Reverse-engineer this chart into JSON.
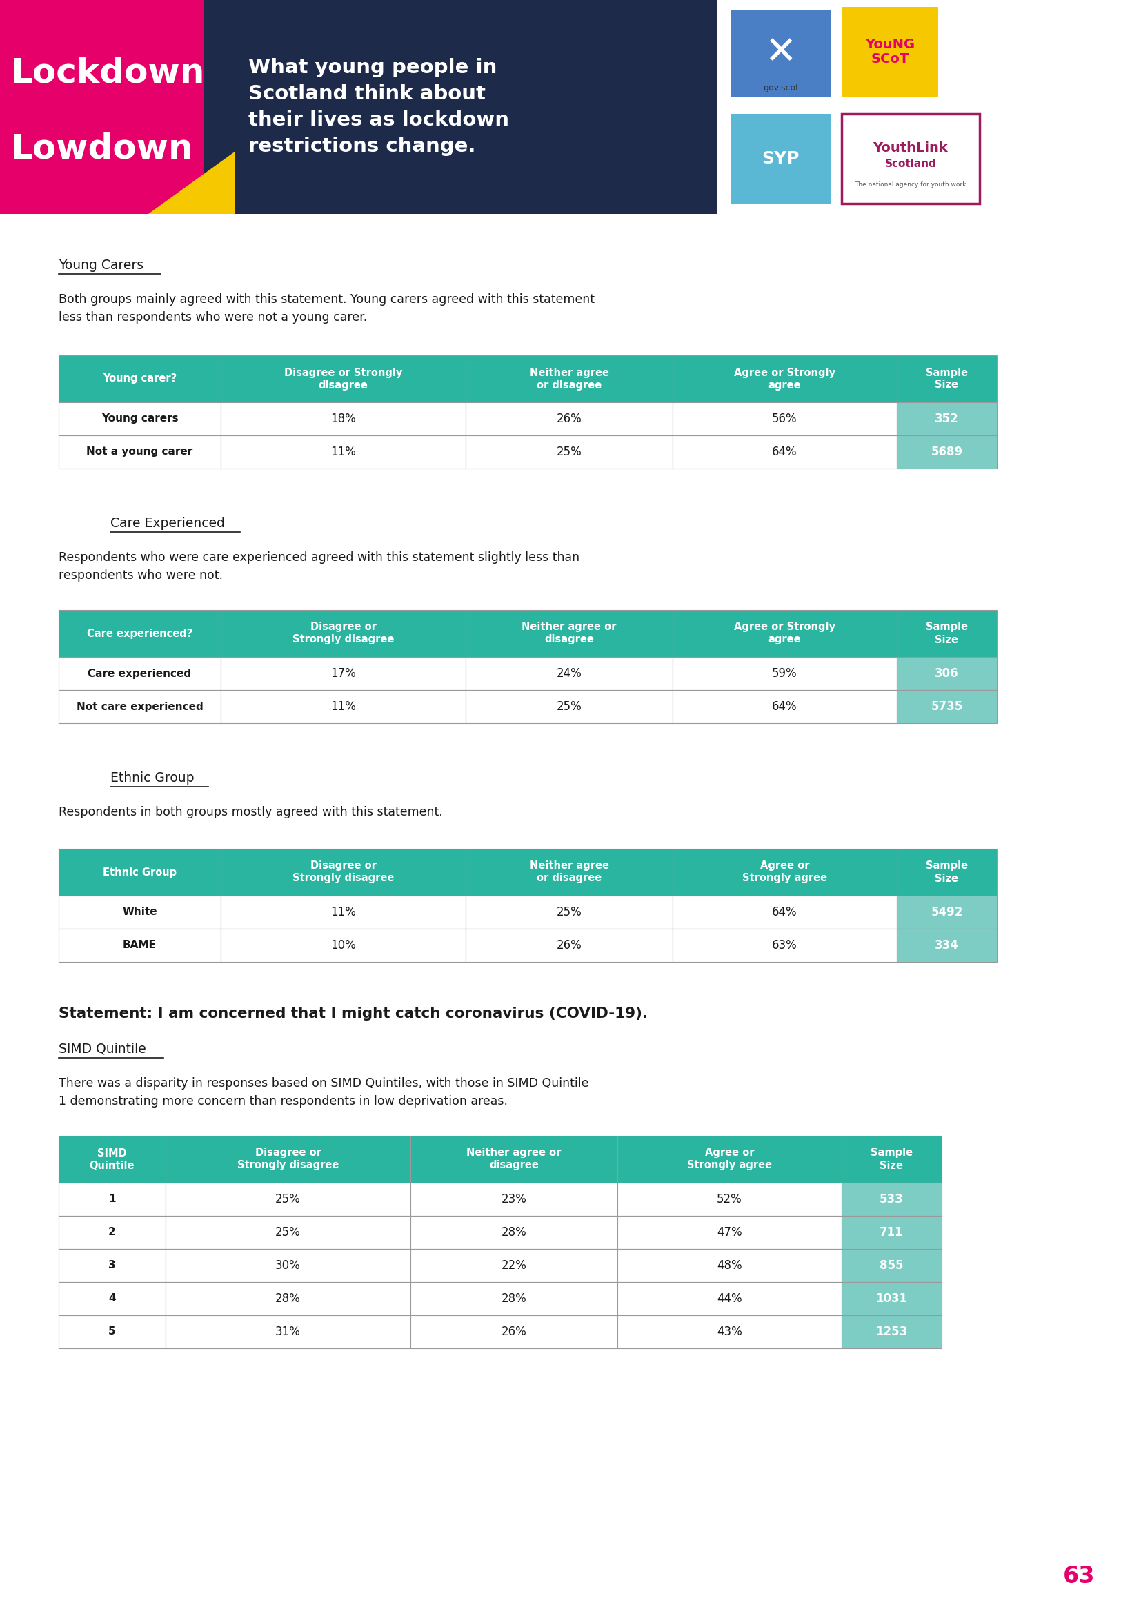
{
  "header_bg": "#1e2a4a",
  "teal_color": "#2ab5a0",
  "light_teal": "#7ecdc5",
  "pink_color": "#e5006a",
  "yellow_color": "#f5c800",
  "white": "#ffffff",
  "black": "#000000",
  "dark_text": "#1a1a1a",
  "page_bg": "#ffffff",
  "page_number_color": "#e5006a",
  "section_title1": "Young Carers",
  "section_desc1": "Both groups mainly agreed with this statement. Young carers agreed with this statement\nless than respondents who were not a young carer.",
  "table1_header": [
    "Young carer?",
    "Disagree or Strongly\ndisagree",
    "Neither agree\nor disagree",
    "Agree or Strongly\nagree",
    "Sample\nSize"
  ],
  "table1_rows": [
    [
      "Young carers",
      "18%",
      "26%",
      "56%",
      "352"
    ],
    [
      "Not a young carer",
      "11%",
      "25%",
      "64%",
      "5689"
    ]
  ],
  "section_title2": "Care Experienced",
  "section_desc2": "Respondents who were care experienced agreed with this statement slightly less than\nrespondents who were not.",
  "table2_header": [
    "Care experienced?",
    "Disagree or\nStrongly disagree",
    "Neither agree or\ndisagree",
    "Agree or Strongly\nagree",
    "Sample\nSize"
  ],
  "table2_rows": [
    [
      "Care experienced",
      "17%",
      "24%",
      "59%",
      "306"
    ],
    [
      "Not care experienced",
      "11%",
      "25%",
      "64%",
      "5735"
    ]
  ],
  "section_title3": "Ethnic Group",
  "section_desc3": "Respondents in both groups mostly agreed with this statement.",
  "table3_header": [
    "Ethnic Group",
    "Disagree or\nStrongly disagree",
    "Neither agree\nor disagree",
    "Agree or\nStrongly agree",
    "Sample\nSize"
  ],
  "table3_rows": [
    [
      "White",
      "11%",
      "25%",
      "64%",
      "5492"
    ],
    [
      "BAME",
      "10%",
      "26%",
      "63%",
      "334"
    ]
  ],
  "bold_statement": "Statement: I am concerned that I might catch coronavirus (COVID-19).",
  "section_title4": "SIMD Quintile",
  "section_desc4": "There was a disparity in responses based on SIMD Quintiles, with those in SIMD Quintile\n1 demonstrating more concern than respondents in low deprivation areas.",
  "table4_header": [
    "SIMD\nQuintile",
    "Disagree or\nStrongly disagree",
    "Neither agree or\ndisagree",
    "Agree or\nStrongly agree",
    "Sample\nSize"
  ],
  "table4_rows": [
    [
      "1",
      "25%",
      "23%",
      "52%",
      "533"
    ],
    [
      "2",
      "25%",
      "28%",
      "47%",
      "711"
    ],
    [
      "3",
      "30%",
      "22%",
      "48%",
      "855"
    ],
    [
      "4",
      "28%",
      "28%",
      "44%",
      "1031"
    ],
    [
      "5",
      "31%",
      "26%",
      "43%",
      "1253"
    ]
  ],
  "page_number": "63",
  "header_title": "What young people in\nScotland think about\ntheir lives as lockdown\nrestrictions change."
}
